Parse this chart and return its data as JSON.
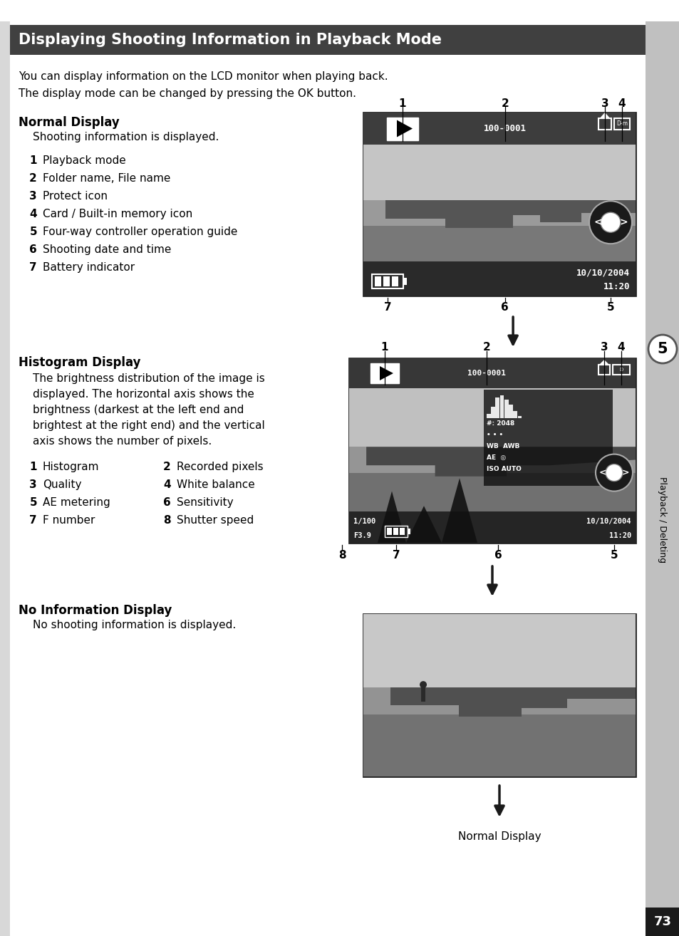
{
  "title": "Displaying Shooting Information in Playback Mode",
  "title_bg": "#404040",
  "title_color": "#ffffff",
  "page_bg": "#ffffff",
  "body_text_1": "You can display information on the LCD monitor when playing back.",
  "body_text_2": "The display mode can be changed by pressing the OK button.",
  "section1_title": "Normal Display",
  "section1_desc": "Shooting information is displayed.",
  "section1_items": [
    [
      "1",
      "Playback mode"
    ],
    [
      "2",
      "Folder name, File name"
    ],
    [
      "3",
      "Protect icon"
    ],
    [
      "4",
      "Card / Built-in memory icon"
    ],
    [
      "5",
      "Four-way controller operation guide"
    ],
    [
      "6",
      "Shooting date and time"
    ],
    [
      "7",
      "Battery indicator"
    ]
  ],
  "section2_title": "Histogram Display",
  "section2_desc_lines": [
    "The brightness distribution of the image is",
    "displayed. The horizontal axis shows the",
    "brightness (darkest at the left end and",
    "brightest at the right end) and the vertical",
    "axis shows the number of pixels."
  ],
  "section2_items_col1": [
    [
      "1",
      "Histogram"
    ],
    [
      "3",
      "Quality"
    ],
    [
      "5",
      "AE metering"
    ],
    [
      "7",
      "F number"
    ]
  ],
  "section2_items_col2": [
    [
      "2",
      "Recorded pixels"
    ],
    [
      "4",
      "White balance"
    ],
    [
      "6",
      "Sensitivity"
    ],
    [
      "8",
      "Shutter speed"
    ]
  ],
  "section3_title": "No Information Display",
  "section3_desc": "No shooting information is displayed.",
  "sidebar_text": "Playback / Deleting",
  "sidebar_num": "5",
  "page_num": "73",
  "normal_display_label": "Normal Display",
  "sidebar_bg": "#c0c0c0",
  "sidebar_dark_bg": "#808080",
  "arrow_color": "#1a1a1a",
  "text_color": "#000000"
}
